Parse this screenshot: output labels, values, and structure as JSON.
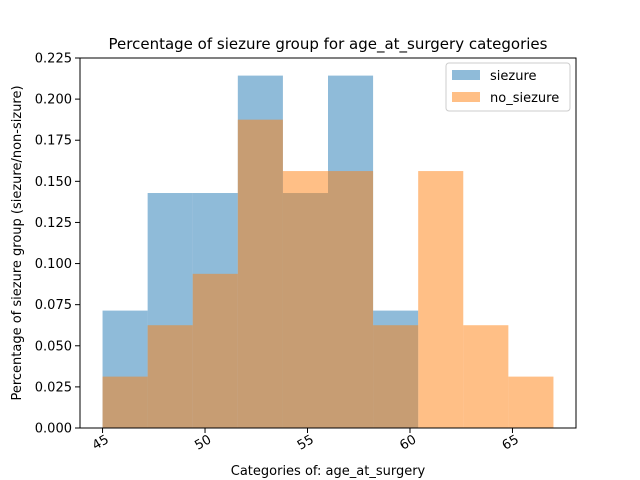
{
  "chart_data": {
    "type": "bar",
    "title": "Percentage of siezure group for age_at_surgery categories",
    "xlabel": "Categories of: age_at_surgery",
    "ylabel": "Percentage of siezure group (siezure/non-sizure)",
    "xlim": [
      43.9,
      68.1
    ],
    "ylim": [
      0.0,
      0.225
    ],
    "x_ticks": [
      45,
      50,
      55,
      60,
      65
    ],
    "x_tick_labels": [
      "45",
      "50",
      "55",
      "60",
      "65"
    ],
    "y_ticks": [
      0.0,
      0.025,
      0.05,
      0.075,
      0.1,
      0.125,
      0.15,
      0.175,
      0.2,
      0.225
    ],
    "y_tick_labels": [
      "0.000",
      "0.025",
      "0.050",
      "0.075",
      "0.100",
      "0.125",
      "0.150",
      "0.175",
      "0.200",
      "0.225"
    ],
    "bin_edges": [
      45.0,
      47.2,
      49.4,
      51.6,
      53.8,
      56.0,
      58.2,
      60.4,
      62.6,
      64.8,
      67.0
    ],
    "series": [
      {
        "name": "siezure",
        "color": "#1f77b4",
        "values": [
          0.0714,
          0.1429,
          0.1429,
          0.2143,
          0.1429,
          0.2143,
          0.0714,
          0.0,
          0.0,
          0.0
        ]
      },
      {
        "name": "no_siezure",
        "color": "#ff7f0e",
        "values": [
          0.03125,
          0.0625,
          0.09375,
          0.1875,
          0.15625,
          0.15625,
          0.0625,
          0.15625,
          0.0625,
          0.03125
        ]
      }
    ],
    "alpha": 0.5,
    "legend_position": "top-right",
    "grid": false
  }
}
